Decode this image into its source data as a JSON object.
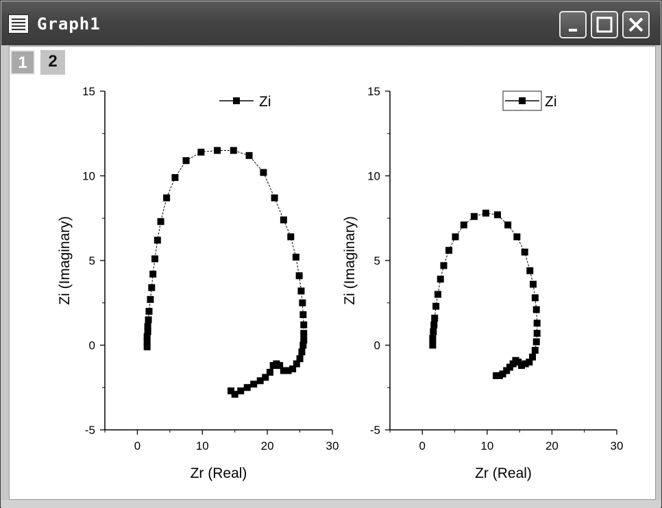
{
  "window": {
    "title": "Graph1"
  },
  "layer_tabs": [
    "1",
    "2"
  ],
  "chart_data": [
    {
      "type": "scatter",
      "xlabel": "Zr (Real)",
      "ylabel": "Zi (Imaginary)",
      "xlim": [
        -5,
        30
      ],
      "ylim": [
        -5,
        15
      ],
      "xticks": [
        "0",
        "10",
        "20",
        "30"
      ],
      "yticks": [
        "-5",
        "0",
        "5",
        "10",
        "15"
      ],
      "legend": {
        "label": "Zi",
        "position": "top-center",
        "boxed": false
      },
      "series": [
        {
          "name": "Zi",
          "x": [
            1.5,
            1.5,
            1.5,
            1.6,
            1.6,
            1.7,
            1.8,
            2.0,
            2.2,
            2.4,
            2.7,
            3.1,
            3.6,
            4.5,
            5.8,
            7.5,
            9.8,
            12.3,
            14.8,
            17.2,
            19.4,
            21.1,
            22.5,
            23.6,
            24.4,
            24.9,
            25.2,
            25.4,
            25.5,
            25.6,
            25.6,
            25.6,
            25.5,
            25.3,
            25.0,
            24.5,
            23.9,
            23.2,
            22.5,
            21.9,
            21.4,
            20.9,
            20.4,
            19.7,
            18.9,
            17.9,
            16.9,
            15.9,
            15.0,
            14.4
          ],
          "y": [
            -0.1,
            0.2,
            0.5,
            0.8,
            1.1,
            1.5,
            2.0,
            2.7,
            3.4,
            4.2,
            5.1,
            6.2,
            7.3,
            8.7,
            9.9,
            10.9,
            11.4,
            11.5,
            11.5,
            11.2,
            10.2,
            8.7,
            7.4,
            6.4,
            5.2,
            4.1,
            3.2,
            2.5,
            1.8,
            1.2,
            0.7,
            0.3,
            0.0,
            -0.4,
            -0.8,
            -1.1,
            -1.4,
            -1.5,
            -1.5,
            -1.2,
            -1.1,
            -1.2,
            -1.6,
            -1.9,
            -2.1,
            -2.3,
            -2.5,
            -2.7,
            -2.9,
            -2.7
          ]
        }
      ]
    },
    {
      "type": "scatter",
      "xlabel": "Zr (Real)",
      "ylabel": "Zi (Imaginary)",
      "xlim": [
        -5,
        30
      ],
      "ylim": [
        -5,
        15
      ],
      "xticks": [
        "0",
        "10",
        "20",
        "30"
      ],
      "yticks": [
        "-5",
        "0",
        "5",
        "10",
        "15"
      ],
      "legend": {
        "label": "Zi",
        "position": "top-center",
        "boxed": true
      },
      "series": [
        {
          "name": "Zi",
          "x": [
            1.6,
            1.6,
            1.7,
            1.8,
            1.9,
            2.1,
            2.4,
            2.8,
            3.3,
            4.1,
            5.1,
            6.4,
            8.0,
            9.8,
            11.6,
            13.2,
            14.6,
            15.8,
            16.6,
            17.1,
            17.4,
            17.6,
            17.7,
            17.7,
            17.6,
            17.4,
            17.0,
            16.5,
            15.9,
            15.3,
            14.8,
            14.4,
            14.0,
            13.5,
            13.0,
            12.4,
            11.9,
            11.4
          ],
          "y": [
            0.0,
            0.4,
            0.8,
            1.2,
            1.6,
            2.3,
            3.0,
            3.9,
            4.7,
            5.6,
            6.4,
            7.1,
            7.6,
            7.8,
            7.7,
            7.1,
            6.4,
            5.5,
            4.4,
            3.6,
            2.8,
            2.1,
            1.3,
            0.7,
            0.2,
            -0.3,
            -0.7,
            -1.0,
            -1.1,
            -1.2,
            -1.0,
            -0.9,
            -1.1,
            -1.3,
            -1.5,
            -1.7,
            -1.8,
            -1.8
          ]
        }
      ]
    }
  ]
}
